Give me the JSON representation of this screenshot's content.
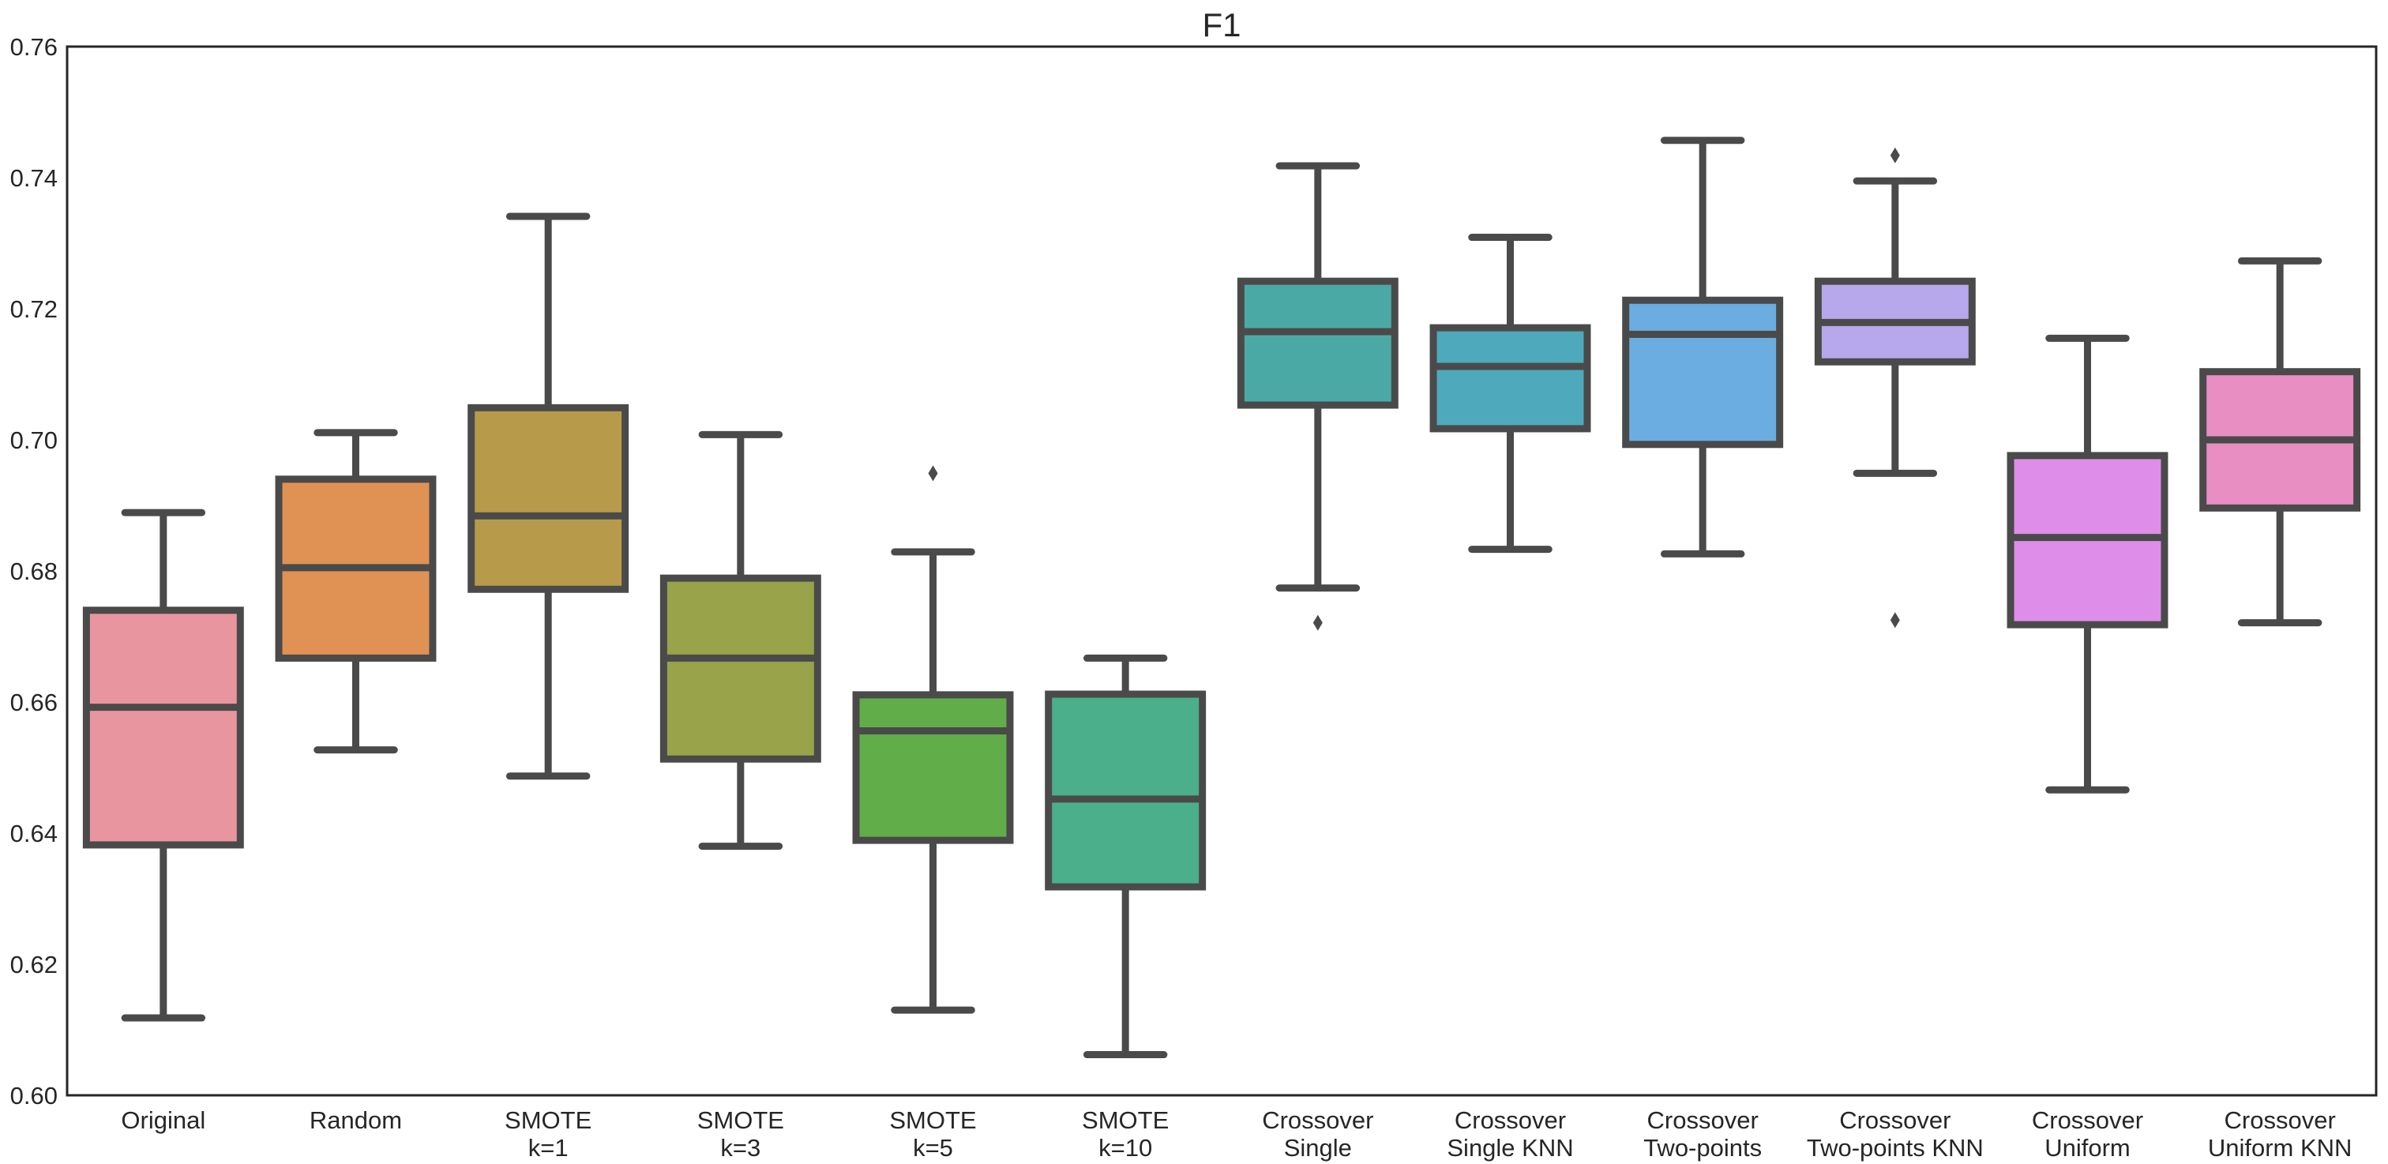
{
  "chart_data": {
    "type": "box",
    "title": "F1",
    "xlabel": "",
    "ylabel": "",
    "ylim": [
      0.6,
      0.76
    ],
    "yticks": [
      "0.60",
      "0.62",
      "0.64",
      "0.66",
      "0.68",
      "0.70",
      "0.72",
      "0.74",
      "0.76"
    ],
    "grid": false,
    "line_color": "#4a4a4a",
    "categories": [
      {
        "label": [
          "Original"
        ],
        "color": "#E9959F",
        "whisker_low": 0.6118,
        "q1": 0.6382,
        "median": 0.6592,
        "q3": 0.674,
        "whisker_high": 0.6889,
        "outliers": []
      },
      {
        "label": [
          "Random"
        ],
        "color": "#E09154",
        "whisker_low": 0.6527,
        "q1": 0.6667,
        "median": 0.6805,
        "q3": 0.694,
        "whisker_high": 0.7011,
        "outliers": []
      },
      {
        "label": [
          "SMOTE",
          "k=1"
        ],
        "color": "#B89B4A",
        "whisker_low": 0.6487,
        "q1": 0.6772,
        "median": 0.6884,
        "q3": 0.7049,
        "whisker_high": 0.7341,
        "outliers": []
      },
      {
        "label": [
          "SMOTE",
          "k=3"
        ],
        "color": "#98A34A",
        "whisker_low": 0.638,
        "q1": 0.6513,
        "median": 0.6667,
        "q3": 0.6789,
        "whisker_high": 0.7008,
        "outliers": []
      },
      {
        "label": [
          "SMOTE",
          "k=5"
        ],
        "color": "#60AD49",
        "whisker_low": 0.613,
        "q1": 0.6389,
        "median": 0.6556,
        "q3": 0.6611,
        "whisker_high": 0.6829,
        "outliers": [
          0.6949
        ]
      },
      {
        "label": [
          "SMOTE",
          "k=10"
        ],
        "color": "#4AAF8A",
        "whisker_low": 0.6062,
        "q1": 0.6318,
        "median": 0.6452,
        "q3": 0.6612,
        "whisker_high": 0.6667,
        "outliers": []
      },
      {
        "label": [
          "Crossover",
          "Single"
        ],
        "color": "#4BA9A5",
        "whisker_low": 0.6774,
        "q1": 0.7053,
        "median": 0.7165,
        "q3": 0.7242,
        "whisker_high": 0.7418,
        "outliers": [
          0.6721
        ]
      },
      {
        "label": [
          "Crossover",
          "Single KNN"
        ],
        "color": "#4FA9BC",
        "whisker_low": 0.6833,
        "q1": 0.7017,
        "median": 0.7112,
        "q3": 0.7171,
        "whisker_high": 0.7309,
        "outliers": []
      },
      {
        "label": [
          "Crossover",
          "Two-points"
        ],
        "color": "#6BADE0",
        "whisker_low": 0.6826,
        "q1": 0.6993,
        "median": 0.7161,
        "q3": 0.7213,
        "whisker_high": 0.7457,
        "outliers": []
      },
      {
        "label": [
          "Crossover",
          "Two-points KNN"
        ],
        "color": "#B6A8EB",
        "whisker_low": 0.6949,
        "q1": 0.7119,
        "median": 0.7179,
        "q3": 0.7242,
        "whisker_high": 0.7395,
        "outliers": [
          0.7434,
          0.6725
        ]
      },
      {
        "label": [
          "Crossover",
          "Uniform"
        ],
        "color": "#DE8EE8",
        "whisker_low": 0.6466,
        "q1": 0.6718,
        "median": 0.6851,
        "q3": 0.6976,
        "whisker_high": 0.7155,
        "outliers": []
      },
      {
        "label": [
          "Crossover",
          "Uniform KNN"
        ],
        "color": "#E88EC3",
        "whisker_low": 0.6721,
        "q1": 0.6896,
        "median": 0.7,
        "q3": 0.7104,
        "whisker_high": 0.7273,
        "outliers": []
      }
    ]
  }
}
